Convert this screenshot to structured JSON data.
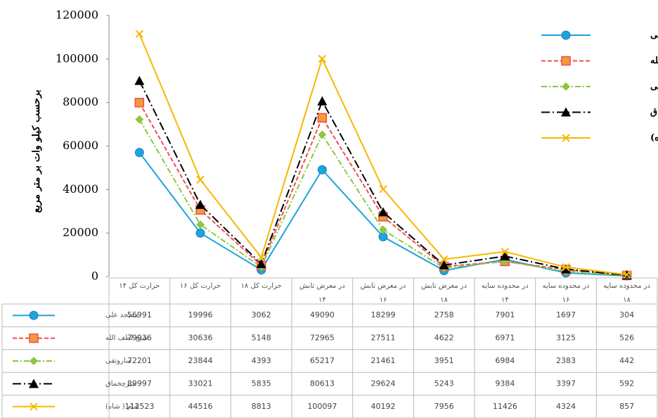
{
  "chart_data": {
    "type": "line",
    "y_label": "برحسب کیلو وات بر متر مربع",
    "categories": [
      "حرارت کل ۱۴",
      "حرارت کل ۱۶",
      "حرارت کل ۱۸",
      "در معرض تابش ۱۴",
      "در معرض تابش ۱۶",
      "در معرض تابش ۱۸",
      "در محدوده سایه ۱۴",
      "در محدوده سایه ۱۶",
      "در محدوده سایه ۱۸"
    ],
    "series": [
      {
        "name": "مسجد علی",
        "color": "#1fa3dc",
        "marker": "circle",
        "dash": "solid",
        "values": [
          56991,
          19996,
          3062,
          49090,
          18299,
          2758,
          7901,
          1697,
          304
        ]
      },
      {
        "name": "شیخ لطف الله",
        "color": "#f04e4e",
        "marker": "square",
        "dash": "dash",
        "values": [
          79936,
          30636,
          5148,
          72965,
          27511,
          4622,
          6971,
          3125,
          526
        ]
      },
      {
        "name": "ساروتقی",
        "color": "#8dc641",
        "marker": "diamond",
        "dash": "dashdot",
        "values": [
          72201,
          23844,
          4393,
          65217,
          21461,
          3951,
          6984,
          2383,
          442
        ]
      },
      {
        "name": "میرچخماق",
        "color": "#000000",
        "marker": "triangle",
        "dash": "longdashdot",
        "values": [
          89997,
          33021,
          5835,
          80613,
          29624,
          5243,
          9384,
          3397,
          592
        ]
      },
      {
        "name": "امام ( شاه)",
        "color": "#f5b800",
        "marker": "x",
        "dash": "solid",
        "values": [
          111523,
          44516,
          8813,
          100097,
          40192,
          7956,
          11426,
          4324,
          857
        ]
      }
    ],
    "ylim": [
      0,
      120000
    ],
    "yticks": [
      0,
      20000,
      40000,
      60000,
      80000,
      100000,
      120000
    ],
    "legend": "top-right",
    "data_table": true
  }
}
